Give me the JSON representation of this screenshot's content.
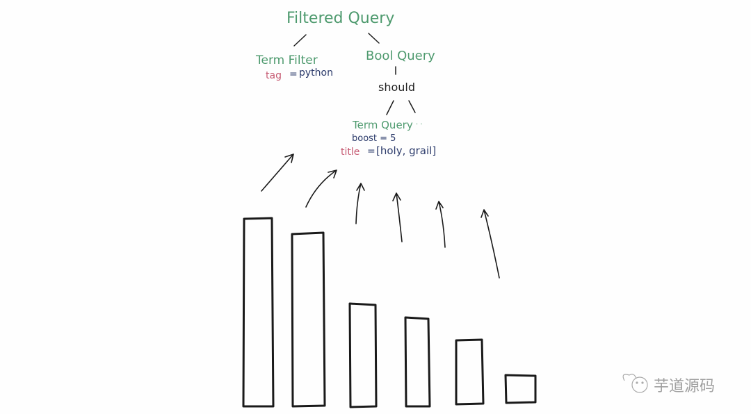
{
  "tree": {
    "root": "Filtered Query",
    "term_filter": {
      "label": "Term Filter",
      "field": "tag",
      "eq": "=",
      "value": "python"
    },
    "bool_query": {
      "label": "Bool Query",
      "clause": "should"
    },
    "term_query": {
      "label": "Term Query",
      "ellipsis": "· ·",
      "boost": "boost = 5",
      "field": "title",
      "eq": "=",
      "value": "[holy, grail]"
    }
  },
  "bars": {
    "count": 6,
    "relative_heights": [
      270,
      250,
      148,
      128,
      93,
      40
    ]
  },
  "watermark": {
    "text": "芋道源码",
    "icon": "wechat-icon"
  },
  "colors": {
    "node_label": "#4e9a6e",
    "field": "#c65a72",
    "value": "#2c3b6b",
    "ink": "#1a1a1a"
  }
}
